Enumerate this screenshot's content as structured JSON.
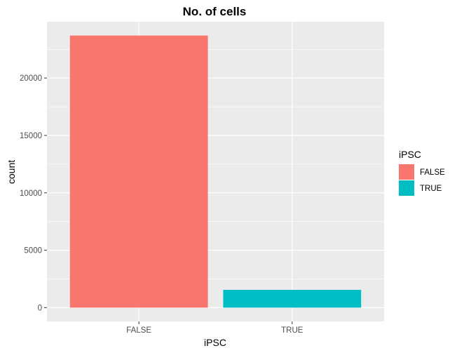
{
  "chart_data": {
    "type": "bar",
    "title": "No. of cells",
    "xlabel": "iPSC",
    "ylabel": "count",
    "categories": [
      "FALSE",
      "TRUE"
    ],
    "values": [
      23700,
      1550
    ],
    "colors": [
      "#F8766D",
      "#00BFC4"
    ],
    "ylim": [
      -1200,
      24900
    ],
    "yticks": [
      0,
      5000,
      10000,
      15000,
      20000
    ],
    "ytick_labels": [
      "0",
      "5000",
      "10000",
      "15000",
      "20000"
    ],
    "grid": true,
    "panel_background": "#EBEBEB",
    "legend": {
      "title": "iPSC",
      "position": "right",
      "entries": [
        {
          "label": "FALSE",
          "color": "#F8766D"
        },
        {
          "label": "TRUE",
          "color": "#00BFC4"
        }
      ]
    }
  }
}
